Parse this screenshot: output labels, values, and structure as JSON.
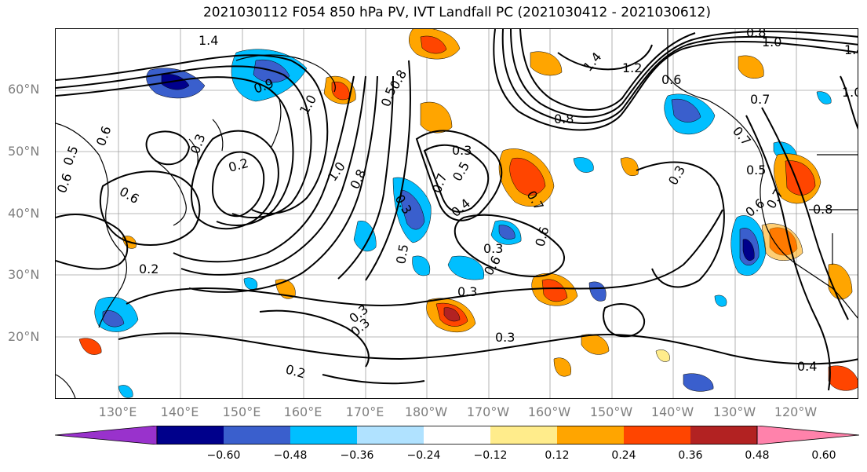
{
  "figure": {
    "title": "2021030112 F054 850 hPa PV, IVT Landfall PC (2021030412 - 2021030612)"
  },
  "axes": {
    "lat_labels": [
      "60°N",
      "50°N",
      "40°N",
      "30°N",
      "20°N"
    ],
    "lon_labels": [
      "130°E",
      "140°E",
      "150°E",
      "160°E",
      "170°E",
      "180°W",
      "170°W",
      "160°W",
      "150°W",
      "140°W",
      "130°W",
      "120°W"
    ],
    "gridlines": true,
    "grid_color": "#a0a0a0"
  },
  "contour_labels": [
    "1.4",
    "1.0",
    "0.9",
    "0.6",
    "0.5",
    "0.6",
    "0.3",
    "0.2",
    "1.0",
    "0.8",
    "0.5",
    "0.6",
    "0.2",
    "0.5",
    "0.8",
    "0.3",
    "0.3",
    "0.7",
    "0.4",
    "0.5",
    "0.3",
    "0.6",
    "0.7",
    "0.3",
    "0.3",
    "0.2",
    "0.3",
    "0.3",
    "0.6",
    "0.8",
    "1.4",
    "1.2",
    "0.6",
    "0.7",
    "1.0",
    "0.8",
    "1.0",
    "0.7",
    "0.5",
    "0.6",
    "0.7",
    "0.8",
    "0.3",
    "0.4",
    "1.4"
  ],
  "colorbar": {
    "ticks": [
      "−0.60",
      "−0.48",
      "−0.36",
      "−0.24",
      "−0.12",
      "0.12",
      "0.24",
      "0.36",
      "0.48",
      "0.60"
    ],
    "colors": [
      "#9932cc",
      "#00008b",
      "#3a5fcd",
      "#00bfff",
      "#b0e2ff",
      "#ffffff",
      "#ffec8b",
      "#ffa500",
      "#ff4500",
      "#b22222",
      "#ff82ab"
    ],
    "extend": "both"
  }
}
